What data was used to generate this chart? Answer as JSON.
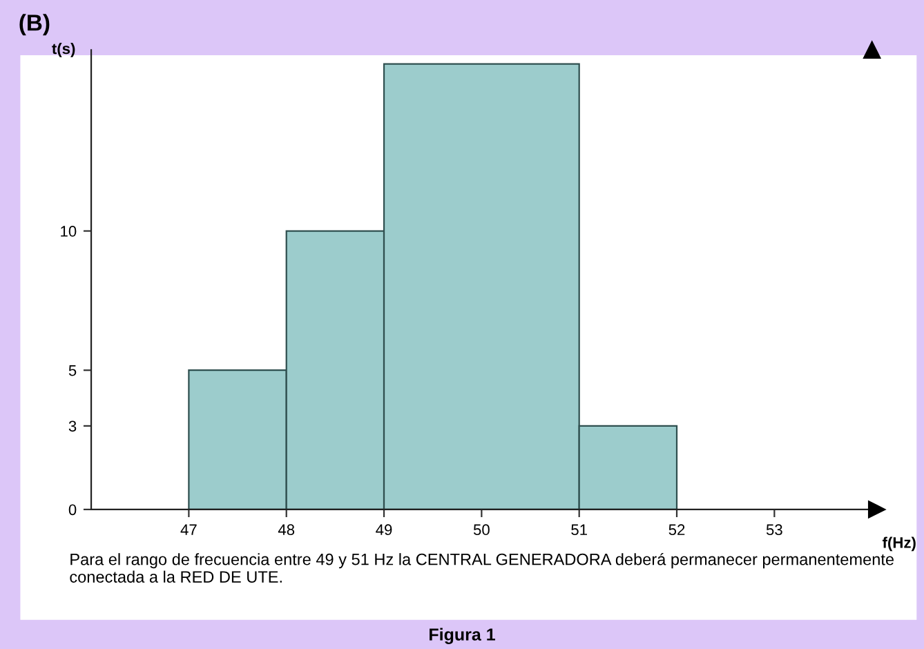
{
  "chart_data": {
    "type": "histogram",
    "title": "(B)",
    "xlabel": "f(Hz)",
    "ylabel": "t(s)",
    "bins": [
      47,
      48,
      49,
      51,
      52
    ],
    "values": [
      5,
      10,
      16,
      3
    ],
    "color": "#9ccccc",
    "xlim": [
      46,
      54
    ],
    "xticks": [
      47,
      48,
      49,
      50,
      51,
      52,
      53
    ],
    "ylim": [
      0,
      16.5
    ],
    "yticks": [
      0,
      3,
      5,
      10
    ],
    "grid": false,
    "annotations": [
      "Para el rango de frecuencia entre 49 y 51 Hz la CENTRAL GENERADORA deberá permanecer permanentemente conectada a la RED DE UTE.",
      "Figura 1"
    ]
  }
}
